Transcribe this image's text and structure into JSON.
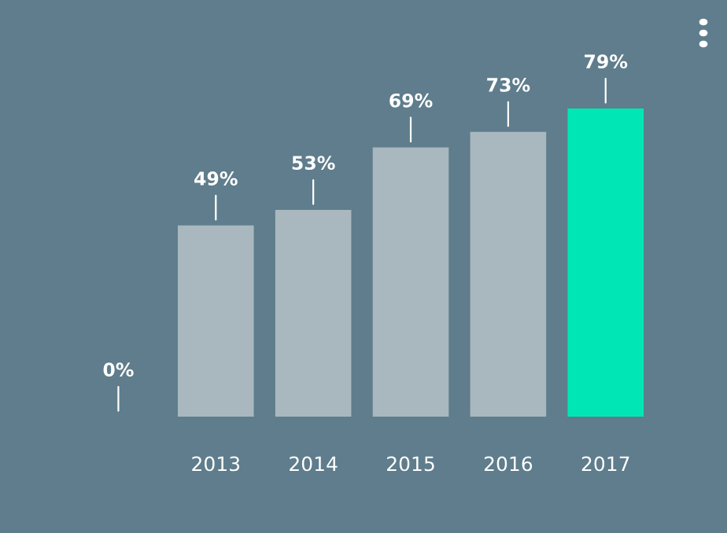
{
  "chart_data": {
    "type": "bar",
    "categories": [
      null,
      "2013",
      "2014",
      "2015",
      "2016",
      "2017"
    ],
    "values": [
      0,
      49,
      53,
      69,
      73,
      79
    ],
    "colors": [
      "#a9b8bf",
      "#a9b8bf",
      "#a9b8bf",
      "#a9b8bf",
      "#a9b8bf",
      "#00e6b4"
    ],
    "value_labels": [
      "0%",
      "49%",
      "53%",
      "69%",
      "73%",
      "79%"
    ],
    "grid": false,
    "legend": false
  }
}
